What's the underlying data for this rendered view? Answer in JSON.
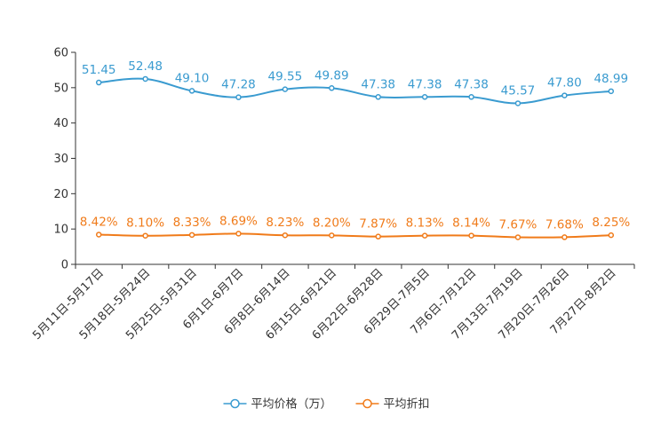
{
  "chart_data": {
    "type": "line",
    "title": "",
    "xlabel": "",
    "ylabel": "",
    "ylim": [
      0,
      60
    ],
    "yticks": [
      0,
      10,
      20,
      30,
      40,
      50,
      60
    ],
    "grid": false,
    "legend_position": "bottom-center",
    "categories": [
      "5月11日-5月17日",
      "5月18日-5月24日",
      "5月25日-5月31日",
      "6月1日-6月7日",
      "6月8日-6月14日",
      "6月15日-6月21日",
      "6月22日-6月28日",
      "6月29日-7月5日",
      "7月6日-7月12日",
      "7月13日-7月19日",
      "7月20日-7月26日",
      "7月27日-8月2日"
    ],
    "series": [
      {
        "name": "平均价格（万）",
        "color": "#3a9bd0",
        "values": [
          51.45,
          52.48,
          49.1,
          47.28,
          49.55,
          49.89,
          47.38,
          47.38,
          47.38,
          45.57,
          47.8,
          48.99
        ],
        "labels": [
          "51.45",
          "52.48",
          "49.10",
          "47.28",
          "49.55",
          "49.89",
          "47.38",
          "47.38",
          "47.38",
          "45.57",
          "47.80",
          "48.99"
        ]
      },
      {
        "name": "平均折扣",
        "color": "#f07b1a",
        "values": [
          8.42,
          8.1,
          8.33,
          8.69,
          8.23,
          8.2,
          7.87,
          8.13,
          8.14,
          7.67,
          7.68,
          8.25
        ],
        "labels": [
          "8.42%",
          "8.10%",
          "8.33%",
          "8.69%",
          "8.23%",
          "8.20%",
          "7.87%",
          "8.13%",
          "8.14%",
          "7.67%",
          "7.68%",
          "8.25%"
        ]
      }
    ]
  }
}
